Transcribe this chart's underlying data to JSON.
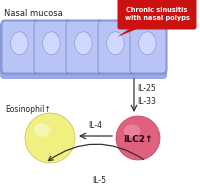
{
  "title": "Nasal mucosa",
  "red_bubble_text": "Chronic sinusitis\nwith nasal polyps",
  "eosinophil_label": "Eosinophil↑",
  "ilc2_label": "ILC2↑",
  "arrow_il25_33": "IL-25\nIL-33",
  "arrow_il4": "IL-4",
  "arrow_il5": "IL-5",
  "cell_outer_color": "#9aa8e8",
  "cell_inner_color": "#b8c4f5",
  "cell_edge_color": "#7080c0",
  "cell_nucleus_color": "#d0d8ff",
  "eosinophil_color": "#f0f080",
  "eosinophil_inner": "#f8f8c0",
  "eosinophil_edge": "#c8c050",
  "ilc2_color": "#e06080",
  "ilc2_inner": "#ee90a8",
  "ilc2_edge": "#c04060",
  "red_bubble_color": "#cc1111",
  "bg_color": "#ffffff",
  "arrow_color": "#333333",
  "text_color": "#222222",
  "white": "#ffffff"
}
